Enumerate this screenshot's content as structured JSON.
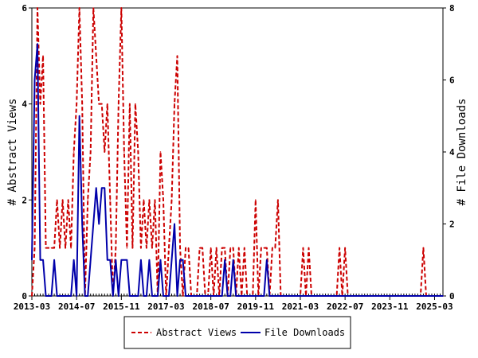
{
  "chart_data": {
    "type": "line",
    "x_tick_labels": [
      "2013-03",
      "2014-07",
      "2015-11",
      "2017-03",
      "2018-07",
      "2019-11",
      "2021-03",
      "2022-07",
      "2023-11",
      "2025-03"
    ],
    "x_range": [
      "2013-03",
      "2025-06"
    ],
    "y_left": {
      "label": "# Abstract Views",
      "ticks": [
        "0",
        "2",
        "4",
        "6"
      ],
      "range": [
        0,
        6
      ]
    },
    "y_right": {
      "label": "# File Downloads",
      "ticks": [
        "0",
        "2",
        "4",
        "6",
        "8"
      ],
      "range": [
        0,
        8
      ]
    },
    "grid": false,
    "legend_position": "bottom",
    "series": [
      {
        "name": "Abstract Views",
        "axis": "left",
        "color": "#cc0000",
        "style": "dashed",
        "points": [
          [
            "2013-03",
            0
          ],
          [
            "2013-04",
            1
          ],
          [
            "2013-05",
            6
          ],
          [
            "2013-06",
            4
          ],
          [
            "2013-07",
            5
          ],
          [
            "2013-08",
            1
          ],
          [
            "2013-09",
            1
          ],
          [
            "2013-10",
            1
          ],
          [
            "2013-11",
            1
          ],
          [
            "2013-12",
            2
          ],
          [
            "2014-01",
            1
          ],
          [
            "2014-02",
            2
          ],
          [
            "2014-03",
            1
          ],
          [
            "2014-04",
            2
          ],
          [
            "2014-05",
            1
          ],
          [
            "2014-06",
            3
          ],
          [
            "2014-07",
            4
          ],
          [
            "2014-08",
            6
          ],
          [
            "2014-09",
            4
          ],
          [
            "2014-10",
            0
          ],
          [
            "2014-11",
            2
          ],
          [
            "2014-12",
            3
          ],
          [
            "2015-01",
            6
          ],
          [
            "2015-02",
            5
          ],
          [
            "2015-03",
            4
          ],
          [
            "2015-04",
            4
          ],
          [
            "2015-05",
            3
          ],
          [
            "2015-06",
            4
          ],
          [
            "2015-07",
            2
          ],
          [
            "2015-08",
            0
          ],
          [
            "2015-09",
            1
          ],
          [
            "2015-10",
            4
          ],
          [
            "2015-11",
            6
          ],
          [
            "2015-12",
            3
          ],
          [
            "2016-01",
            1
          ],
          [
            "2016-02",
            4
          ],
          [
            "2016-03",
            1
          ],
          [
            "2016-04",
            4
          ],
          [
            "2016-05",
            3
          ],
          [
            "2016-06",
            1
          ],
          [
            "2016-07",
            2
          ],
          [
            "2016-08",
            1
          ],
          [
            "2016-09",
            2
          ],
          [
            "2016-10",
            1
          ],
          [
            "2016-11",
            2
          ],
          [
            "2016-12",
            0
          ],
          [
            "2017-01",
            3
          ],
          [
            "2017-02",
            2
          ],
          [
            "2017-03",
            0
          ],
          [
            "2017-04",
            1
          ],
          [
            "2017-05",
            2
          ],
          [
            "2017-06",
            4
          ],
          [
            "2017-07",
            5
          ],
          [
            "2017-08",
            1
          ],
          [
            "2017-09",
            0
          ],
          [
            "2017-10",
            1
          ],
          [
            "2017-11",
            1
          ],
          [
            "2017-12",
            0
          ],
          [
            "2018-01",
            0
          ],
          [
            "2018-02",
            0
          ],
          [
            "2018-03",
            1
          ],
          [
            "2018-04",
            1
          ],
          [
            "2018-05",
            0
          ],
          [
            "2018-06",
            0
          ],
          [
            "2018-07",
            1
          ],
          [
            "2018-08",
            0
          ],
          [
            "2018-09",
            1
          ],
          [
            "2018-10",
            0
          ],
          [
            "2018-11",
            1
          ],
          [
            "2018-12",
            1
          ],
          [
            "2019-01",
            0
          ],
          [
            "2019-02",
            1
          ],
          [
            "2019-03",
            1
          ],
          [
            "2019-04",
            0
          ],
          [
            "2019-05",
            1
          ],
          [
            "2019-06",
            0
          ],
          [
            "2019-07",
            1
          ],
          [
            "2019-08",
            0
          ],
          [
            "2019-09",
            0
          ],
          [
            "2019-10",
            0
          ],
          [
            "2019-11",
            2
          ],
          [
            "2019-12",
            0
          ],
          [
            "2020-01",
            1
          ],
          [
            "2020-02",
            1
          ],
          [
            "2020-03",
            1
          ],
          [
            "2020-04",
            0
          ],
          [
            "2020-05",
            1
          ],
          [
            "2020-06",
            1
          ],
          [
            "2020-07",
            2
          ],
          [
            "2020-08",
            0
          ],
          [
            "2020-09",
            0
          ],
          [
            "2020-10",
            0
          ],
          [
            "2020-11",
            0
          ],
          [
            "2020-12",
            0
          ],
          [
            "2021-01",
            0
          ],
          [
            "2021-02",
            0
          ],
          [
            "2021-03",
            0
          ],
          [
            "2021-04",
            1
          ],
          [
            "2021-05",
            0
          ],
          [
            "2021-06",
            1
          ],
          [
            "2021-07",
            0
          ],
          [
            "2021-08",
            0
          ],
          [
            "2021-09",
            0
          ],
          [
            "2021-10",
            0
          ],
          [
            "2021-11",
            0
          ],
          [
            "2021-12",
            0
          ],
          [
            "2022-01",
            0
          ],
          [
            "2022-02",
            0
          ],
          [
            "2022-03",
            0
          ],
          [
            "2022-04",
            0
          ],
          [
            "2022-05",
            1
          ],
          [
            "2022-06",
            0
          ],
          [
            "2022-07",
            1
          ],
          [
            "2022-08",
            0
          ],
          [
            "2022-09",
            0
          ],
          [
            "2022-10",
            0
          ],
          [
            "2022-11",
            0
          ],
          [
            "2022-12",
            0
          ],
          [
            "2023-01",
            0
          ],
          [
            "2023-02",
            0
          ],
          [
            "2023-03",
            0
          ],
          [
            "2023-04",
            0
          ],
          [
            "2023-05",
            0
          ],
          [
            "2023-06",
            0
          ],
          [
            "2023-07",
            0
          ],
          [
            "2023-08",
            0
          ],
          [
            "2023-09",
            0
          ],
          [
            "2023-10",
            0
          ],
          [
            "2023-11",
            0
          ],
          [
            "2023-12",
            0
          ],
          [
            "2024-01",
            0
          ],
          [
            "2024-02",
            0
          ],
          [
            "2024-03",
            0
          ],
          [
            "2024-04",
            0
          ],
          [
            "2024-05",
            0
          ],
          [
            "2024-06",
            0
          ],
          [
            "2024-07",
            0
          ],
          [
            "2024-08",
            0
          ],
          [
            "2024-09",
            0
          ],
          [
            "2024-10",
            0
          ],
          [
            "2024-11",
            1
          ],
          [
            "2024-12",
            0
          ],
          [
            "2025-01",
            0
          ],
          [
            "2025-02",
            0
          ],
          [
            "2025-03",
            0
          ],
          [
            "2025-04",
            0
          ],
          [
            "2025-05",
            0
          ],
          [
            "2025-06",
            0
          ]
        ]
      },
      {
        "name": "File Downloads",
        "axis": "right",
        "color": "#0000aa",
        "style": "solid",
        "points": [
          [
            "2013-03",
            1
          ],
          [
            "2013-04",
            6
          ],
          [
            "2013-05",
            7
          ],
          [
            "2013-06",
            1
          ],
          [
            "2013-07",
            1
          ],
          [
            "2013-08",
            0
          ],
          [
            "2013-09",
            0
          ],
          [
            "2013-10",
            0
          ],
          [
            "2013-11",
            1
          ],
          [
            "2013-12",
            0
          ],
          [
            "2014-01",
            0
          ],
          [
            "2014-02",
            0
          ],
          [
            "2014-03",
            0
          ],
          [
            "2014-04",
            0
          ],
          [
            "2014-05",
            0
          ],
          [
            "2014-06",
            1
          ],
          [
            "2014-07",
            0
          ],
          [
            "2014-08",
            5
          ],
          [
            "2014-09",
            2
          ],
          [
            "2014-10",
            0
          ],
          [
            "2014-11",
            0
          ],
          [
            "2014-12",
            1
          ],
          [
            "2015-01",
            2
          ],
          [
            "2015-02",
            3
          ],
          [
            "2015-03",
            2
          ],
          [
            "2015-04",
            3
          ],
          [
            "2015-05",
            3
          ],
          [
            "2015-06",
            1
          ],
          [
            "2015-07",
            1
          ],
          [
            "2015-08",
            0
          ],
          [
            "2015-09",
            1
          ],
          [
            "2015-10",
            0
          ],
          [
            "2015-11",
            1
          ],
          [
            "2015-12",
            1
          ],
          [
            "2016-01",
            1
          ],
          [
            "2016-02",
            0
          ],
          [
            "2016-03",
            0
          ],
          [
            "2016-04",
            0
          ],
          [
            "2016-05",
            0
          ],
          [
            "2016-06",
            1
          ],
          [
            "2016-07",
            0
          ],
          [
            "2016-08",
            0
          ],
          [
            "2016-09",
            1
          ],
          [
            "2016-10",
            0
          ],
          [
            "2016-11",
            0
          ],
          [
            "2016-12",
            0
          ],
          [
            "2017-01",
            1
          ],
          [
            "2017-02",
            0
          ],
          [
            "2017-03",
            0
          ],
          [
            "2017-04",
            0
          ],
          [
            "2017-05",
            1
          ],
          [
            "2017-06",
            2
          ],
          [
            "2017-07",
            0
          ],
          [
            "2017-08",
            1
          ],
          [
            "2017-09",
            1
          ],
          [
            "2017-10",
            0
          ],
          [
            "2017-11",
            0
          ],
          [
            "2017-12",
            0
          ],
          [
            "2018-01",
            0
          ],
          [
            "2018-02",
            0
          ],
          [
            "2018-03",
            0
          ],
          [
            "2018-04",
            0
          ],
          [
            "2018-05",
            0
          ],
          [
            "2018-06",
            0
          ],
          [
            "2018-07",
            0
          ],
          [
            "2018-08",
            0
          ],
          [
            "2018-09",
            0
          ],
          [
            "2018-10",
            0
          ],
          [
            "2018-11",
            0
          ],
          [
            "2018-12",
            1
          ],
          [
            "2019-01",
            0
          ],
          [
            "2019-02",
            0
          ],
          [
            "2019-03",
            1
          ],
          [
            "2019-04",
            0
          ],
          [
            "2019-05",
            0
          ],
          [
            "2019-06",
            0
          ],
          [
            "2019-07",
            0
          ],
          [
            "2019-08",
            0
          ],
          [
            "2019-09",
            0
          ],
          [
            "2019-10",
            0
          ],
          [
            "2019-11",
            0
          ],
          [
            "2019-12",
            0
          ],
          [
            "2020-01",
            0
          ],
          [
            "2020-02",
            0
          ],
          [
            "2020-03",
            1
          ],
          [
            "2020-04",
            0
          ],
          [
            "2020-05",
            0
          ],
          [
            "2020-06",
            0
          ],
          [
            "2020-07",
            0
          ],
          [
            "2020-08",
            0
          ],
          [
            "2020-09",
            0
          ],
          [
            "2020-10",
            0
          ],
          [
            "2020-11",
            0
          ],
          [
            "2020-12",
            0
          ],
          [
            "2021-01",
            0
          ],
          [
            "2021-02",
            0
          ],
          [
            "2021-03",
            0
          ],
          [
            "2021-04",
            0
          ],
          [
            "2021-05",
            0
          ],
          [
            "2021-06",
            0
          ],
          [
            "2021-07",
            0
          ],
          [
            "2021-08",
            0
          ],
          [
            "2021-09",
            0
          ],
          [
            "2021-10",
            0
          ],
          [
            "2021-11",
            0
          ],
          [
            "2021-12",
            0
          ],
          [
            "2022-01",
            0
          ],
          [
            "2022-02",
            0
          ],
          [
            "2022-03",
            0
          ],
          [
            "2022-04",
            0
          ],
          [
            "2022-05",
            0
          ],
          [
            "2022-06",
            0
          ],
          [
            "2022-07",
            0
          ],
          [
            "2022-08",
            0
          ],
          [
            "2022-09",
            0
          ],
          [
            "2022-10",
            0
          ],
          [
            "2022-11",
            0
          ],
          [
            "2022-12",
            0
          ],
          [
            "2023-01",
            0
          ],
          [
            "2023-02",
            0
          ],
          [
            "2023-03",
            0
          ],
          [
            "2023-04",
            0
          ],
          [
            "2023-05",
            0
          ],
          [
            "2023-06",
            0
          ],
          [
            "2023-07",
            0
          ],
          [
            "2023-08",
            0
          ],
          [
            "2023-09",
            0
          ],
          [
            "2023-10",
            0
          ],
          [
            "2023-11",
            0
          ],
          [
            "2023-12",
            0
          ],
          [
            "2024-01",
            0
          ],
          [
            "2024-02",
            0
          ],
          [
            "2024-03",
            0
          ],
          [
            "2024-04",
            0
          ],
          [
            "2024-05",
            0
          ],
          [
            "2024-06",
            0
          ],
          [
            "2024-07",
            0
          ],
          [
            "2024-08",
            0
          ],
          [
            "2024-09",
            0
          ],
          [
            "2024-10",
            0
          ],
          [
            "2024-11",
            0
          ],
          [
            "2024-12",
            0
          ],
          [
            "2025-01",
            0
          ],
          [
            "2025-02",
            0
          ],
          [
            "2025-03",
            0
          ],
          [
            "2025-04",
            0
          ],
          [
            "2025-05",
            0
          ],
          [
            "2025-06",
            0
          ]
        ]
      }
    ]
  }
}
